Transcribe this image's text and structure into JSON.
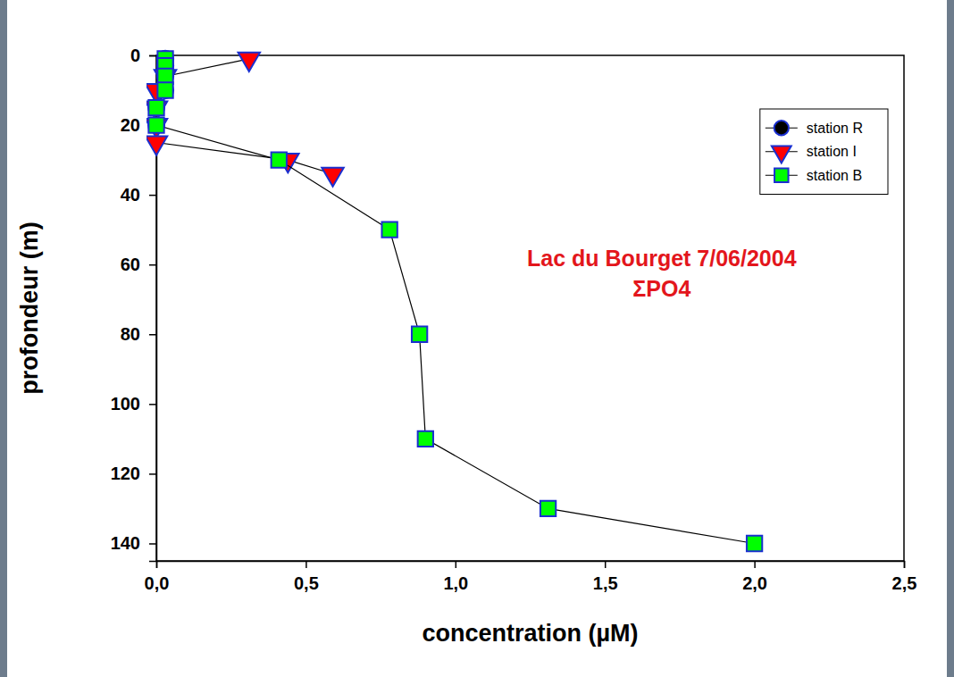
{
  "chart_data": {
    "type": "line",
    "x_label": "concentration (µM)",
    "y_label": "profondeur (m)",
    "annotations": [
      "Lac du Bourget 7/06/2004",
      "ΣPO4"
    ],
    "xlim": [
      0,
      2.5
    ],
    "xticks": [
      {
        "value": 0,
        "label": "0,0"
      },
      {
        "value": 0.5,
        "label": "0,5"
      },
      {
        "value": 1,
        "label": "1,0"
      },
      {
        "value": 1.5,
        "label": "1,5"
      },
      {
        "value": 2,
        "label": "2,0"
      },
      {
        "value": 2.5,
        "label": "2,5"
      }
    ],
    "ylim": [
      0,
      145
    ],
    "yticks": [
      0,
      20,
      40,
      60,
      80,
      100,
      120,
      140
    ],
    "legend": "top-right",
    "grid": false,
    "series": [
      {
        "name": "station R",
        "color": "#000000",
        "marker": "circle",
        "x": [
          0.03,
          0.03,
          0.03,
          0.03,
          0.0,
          0.0
        ],
        "values": [
          1,
          3,
          6,
          10,
          15,
          20
        ]
      },
      {
        "name": "station I",
        "color": "#ff0000",
        "marker": "triangle-down",
        "x": [
          0.31,
          0.03,
          0.0,
          0.0,
          0.0,
          0.0,
          0.44,
          0.59
        ],
        "values": [
          1,
          6,
          10,
          15,
          20,
          25,
          30,
          34
        ]
      },
      {
        "name": "station B",
        "color": "#00ff00",
        "marker": "square",
        "x": [
          0.03,
          0.03,
          0.03,
          0.03,
          0.0,
          0.0,
          0.41,
          0.78,
          0.88,
          0.9,
          1.31,
          2.0
        ],
        "values": [
          1,
          3,
          6,
          10,
          15,
          20,
          30,
          50,
          80,
          110,
          130,
          140
        ]
      }
    ]
  }
}
